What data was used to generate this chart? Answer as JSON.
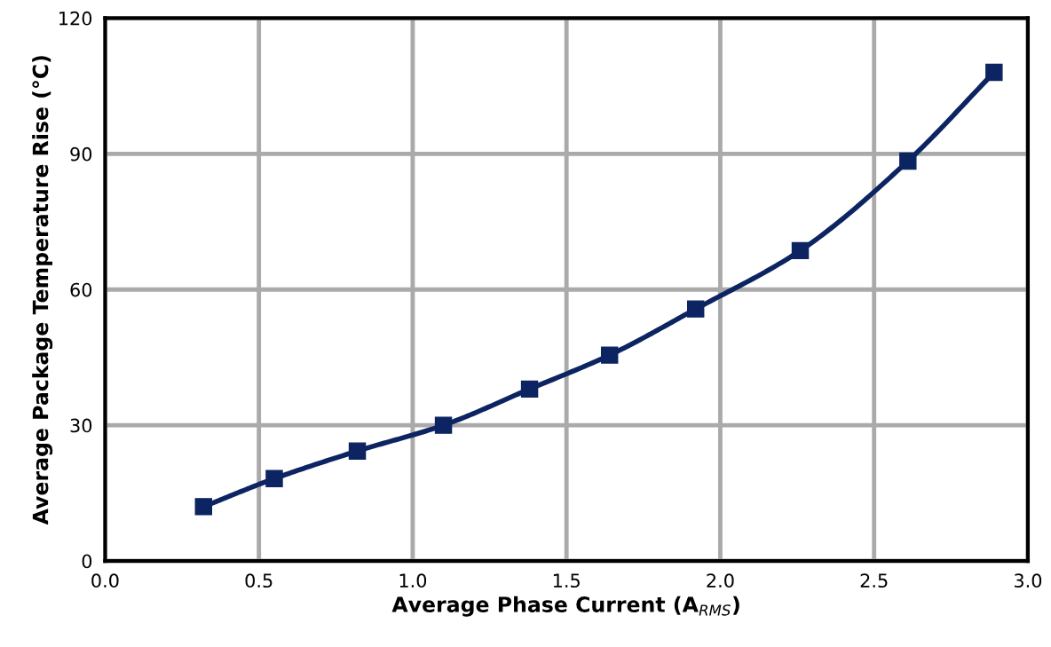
{
  "chart_data": {
    "type": "line",
    "xlabel": "Average Phase Current (A$_{RMS}$)",
    "ylabel": "Average Package Temperature Rise (°C)",
    "x": [
      0.32,
      0.55,
      0.82,
      1.1,
      1.38,
      1.64,
      1.92,
      2.26,
      2.61,
      2.89
    ],
    "series": [
      {
        "color": "#0c2461",
        "values": [
          12.0,
          18.2,
          24.3,
          30.0,
          38.0,
          45.5,
          55.7,
          68.6,
          88.4,
          108.0
        ]
      }
    ],
    "xlim": [
      0,
      3.0
    ],
    "xticks": [
      {
        "value": 0,
        "label": "0.0"
      },
      {
        "value": 0.5,
        "label": "0.5"
      },
      {
        "value": 1.0,
        "label": "1.0"
      },
      {
        "value": 1.5,
        "label": "1.5"
      },
      {
        "value": 2.0,
        "label": "2.0"
      },
      {
        "value": 2.5,
        "label": "2.5"
      },
      {
        "value": 3.0,
        "label": "3.0"
      }
    ],
    "ylim": [
      0,
      120
    ],
    "yticks": [
      0,
      30,
      60,
      90,
      120
    ],
    "grid": true,
    "marker": "square",
    "line_style": "solid",
    "legend": false
  }
}
